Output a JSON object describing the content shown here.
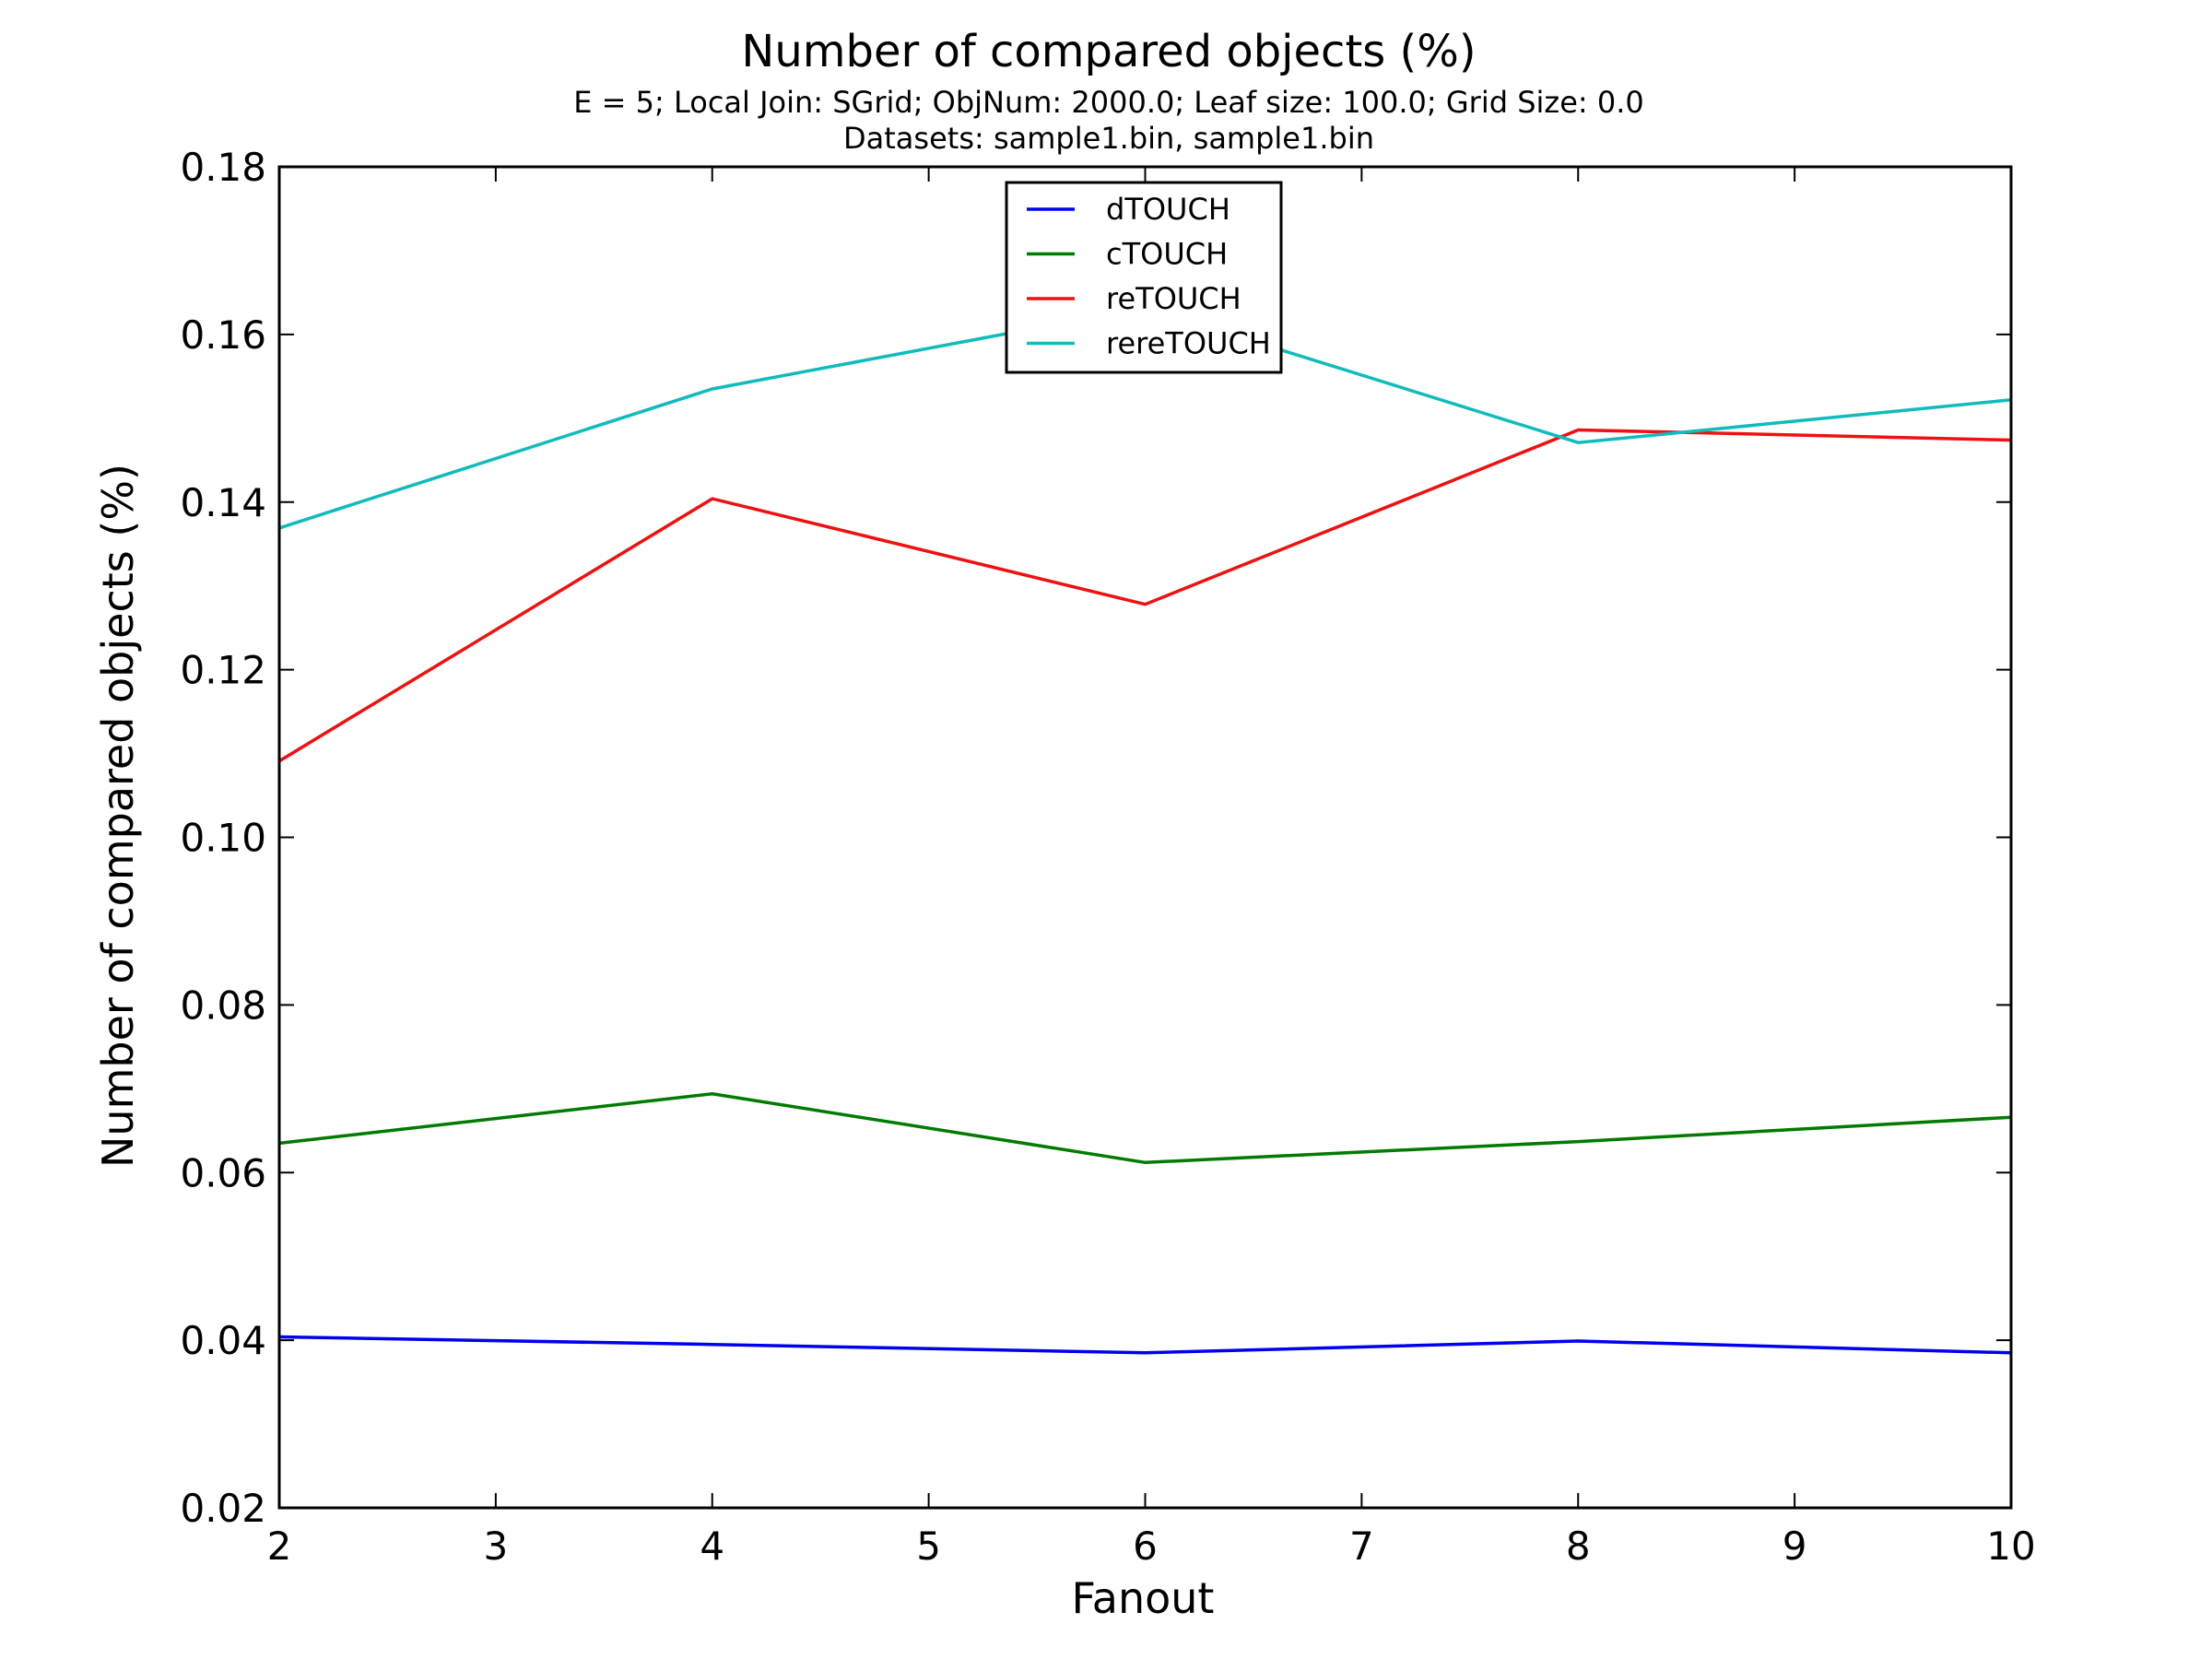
{
  "chart_data": {
    "type": "line",
    "title": "Number of compared objects (%)",
    "subtitle_line1": "E = 5; Local Join: SGrid; ObjNum: 2000.0; Leaf size: 100.0; Grid Size: 0.0",
    "subtitle_line2": "Datasets: sample1.bin, sample1.bin",
    "xlabel": "Fanout",
    "ylabel": "Number of compared objects (%)",
    "xlim": [
      2,
      10
    ],
    "ylim": [
      0.02,
      0.18
    ],
    "xticks": [
      2,
      3,
      4,
      5,
      6,
      7,
      8,
      9,
      10
    ],
    "yticks": [
      0.02,
      0.04,
      0.06,
      0.08,
      0.1,
      0.12,
      0.14,
      0.16,
      0.18
    ],
    "xtick_labels": [
      "2",
      "3",
      "4",
      "5",
      "6",
      "7",
      "8",
      "9",
      "10"
    ],
    "ytick_labels": [
      "0.02",
      "0.04",
      "0.06",
      "0.08",
      "0.10",
      "0.12",
      "0.14",
      "0.16",
      "0.18"
    ],
    "x": [
      2,
      4,
      6,
      8,
      10
    ],
    "grid": false,
    "legend_position": "top-center",
    "series": [
      {
        "name": "dTOUCH",
        "color": "#0000ee",
        "values": [
          0.0404,
          0.0395,
          0.0385,
          0.0399,
          0.0385
        ]
      },
      {
        "name": "cTOUCH",
        "color": "#007a00",
        "values": [
          0.0635,
          0.0694,
          0.0612,
          0.0637,
          0.0666
        ]
      },
      {
        "name": "reTOUCH",
        "color": "#ee1111",
        "values": [
          0.1091,
          0.1404,
          0.1278,
          0.1486,
          0.1474
        ]
      },
      {
        "name": "rereTOUCH",
        "color": "#11bbbb",
        "values": [
          0.1369,
          0.1535,
          0.1632,
          0.1471,
          0.1522
        ]
      }
    ]
  }
}
